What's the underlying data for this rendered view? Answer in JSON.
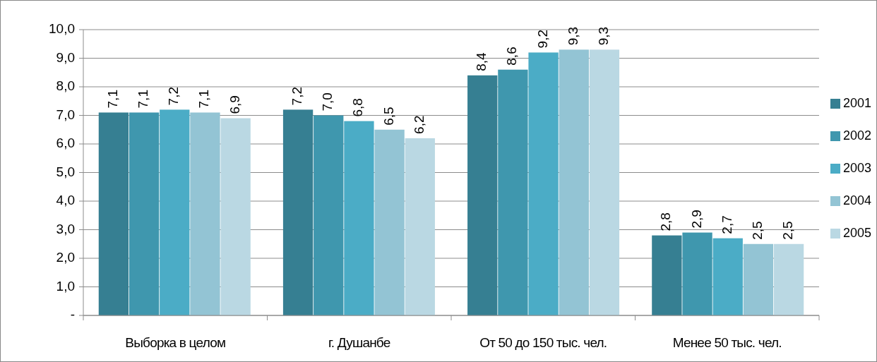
{
  "chart_data": {
    "type": "bar",
    "categories": [
      "Выборка в целом",
      "г. Душанбе",
      "От 50 до 150 тыс. чел.",
      "Менее 50 тыс. чел."
    ],
    "series": [
      {
        "name": "2001",
        "color": "#367f92",
        "values": [
          7.1,
          7.2,
          8.4,
          2.8
        ],
        "value_labels": [
          "7,1",
          "7,2",
          "8,4",
          "2,8"
        ]
      },
      {
        "name": "2002",
        "color": "#3f97ae",
        "values": [
          7.1,
          7.0,
          8.6,
          2.9
        ],
        "value_labels": [
          "7,1",
          "7,0",
          "8,6",
          "2,9"
        ]
      },
      {
        "name": "2003",
        "color": "#4bacc6",
        "values": [
          7.2,
          6.8,
          9.2,
          2.7
        ],
        "value_labels": [
          "7,2",
          "6,8",
          "9,2",
          "2,7"
        ]
      },
      {
        "name": "2004",
        "color": "#93c4d4",
        "values": [
          7.1,
          6.5,
          9.3,
          2.5
        ],
        "value_labels": [
          "7,1",
          "6,5",
          "9,3",
          "2,5"
        ]
      },
      {
        "name": "2005",
        "color": "#bad8e3",
        "values": [
          6.9,
          6.2,
          9.3,
          2.5
        ],
        "value_labels": [
          "6,9",
          "6,2",
          "9,3",
          "2,5"
        ]
      }
    ],
    "ylim": [
      0,
      10
    ],
    "yticks": [
      {
        "value": 0,
        "label": "-"
      },
      {
        "value": 1,
        "label": "1,0"
      },
      {
        "value": 2,
        "label": "2,0"
      },
      {
        "value": 3,
        "label": "3,0"
      },
      {
        "value": 4,
        "label": "4,0"
      },
      {
        "value": 5,
        "label": "5,0"
      },
      {
        "value": 6,
        "label": "6,0"
      },
      {
        "value": 7,
        "label": "7,0"
      },
      {
        "value": 8,
        "label": "8,0"
      },
      {
        "value": 9,
        "label": "9,0"
      },
      {
        "value": 10,
        "label": "10,0"
      }
    ],
    "grid": "y",
    "legend": "right"
  }
}
